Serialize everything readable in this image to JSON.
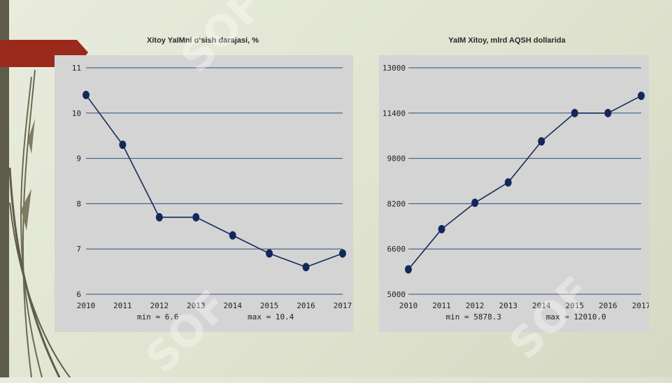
{
  "slide": {
    "accent_red": "#9a2a1c",
    "sidebar_color": "#5d5c4a",
    "watermark_text": "SOF"
  },
  "chart_data": [
    {
      "type": "line",
      "title": "Xitoy YaIMni o‘sish darajasi, %",
      "xlabel": "",
      "ylabel": "",
      "x": [
        "2010",
        "2011",
        "2012",
        "2013",
        "2014",
        "2015",
        "2016",
        "2017"
      ],
      "values": [
        10.4,
        9.3,
        7.7,
        7.7,
        7.3,
        6.9,
        6.6,
        6.9
      ],
      "ylim": [
        6,
        11
      ],
      "yticks": [
        "6",
        "7",
        "8",
        "9",
        "10",
        "11"
      ],
      "grid": true,
      "line_color": "#13285a",
      "min_label": "min = 6.6",
      "max_label": "max = 10.4"
    },
    {
      "type": "line",
      "title": "YaIM Xitoy, mlrd AQSH dollarida",
      "xlabel": "",
      "ylabel": "",
      "x": [
        "2010",
        "2011",
        "2012",
        "2013",
        "2014",
        "2015",
        "2016",
        "2017"
      ],
      "values": [
        5878.3,
        7300,
        8230,
        8950,
        10400,
        11400,
        11400,
        12010
      ],
      "ylim": [
        5000,
        13000
      ],
      "yticks": [
        "5000",
        "6600",
        "8200",
        "9800",
        "11400",
        "13000"
      ],
      "grid": true,
      "line_color": "#13285a",
      "min_label": "min = 5878.3",
      "max_label": "max = 12010.0"
    }
  ]
}
